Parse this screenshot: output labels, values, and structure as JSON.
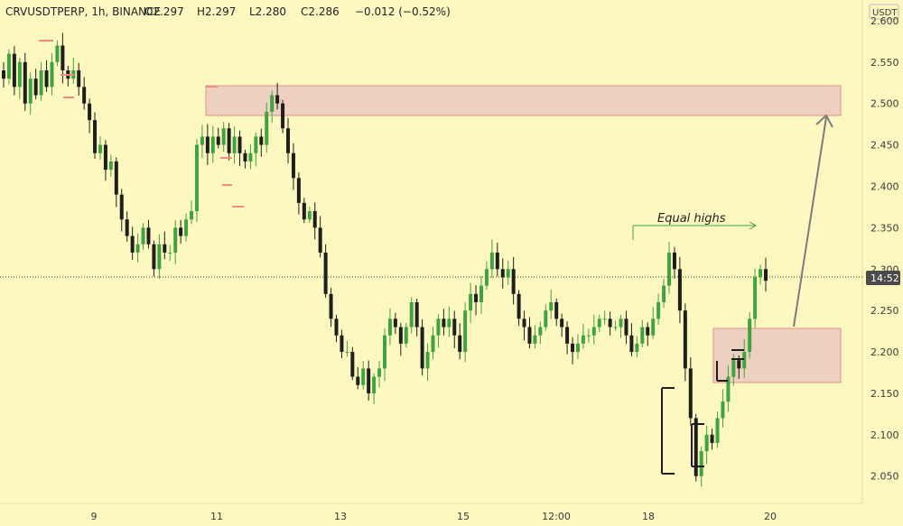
{
  "header": {
    "symbol_line": "CRVUSDTPERP, 1h, BINANCE",
    "open": "O2.297",
    "high": "H2.297",
    "low": "L2.280",
    "close": "C2.286",
    "change": "−0.012 (−0.52%)"
  },
  "currency_label": "USDT",
  "price_badge": "14:52",
  "annotation_equal_highs": "Equal highs",
  "colors": {
    "background": "#FDF8C0",
    "bull": "#3FA33F",
    "bear": "#1E1E1E",
    "zone_fill": "#EBC9C0",
    "zone_border": "#E08F88",
    "tick_marker": "#F28B82",
    "arrow": "#7B7B7B",
    "equal_highs": "#3FA33F",
    "badge": "#4A4A4A"
  },
  "chart_data": {
    "type": "candlestick",
    "symbol": "CRVUSDTPERP",
    "interval": "1h",
    "exchange": "BINANCE",
    "y_ticks": [
      2.6,
      2.55,
      2.5,
      2.45,
      2.4,
      2.35,
      2.3,
      2.25,
      2.2,
      2.15,
      2.1,
      2.05
    ],
    "ylim": [
      2.017,
      2.625
    ],
    "x_ticks": [
      "9",
      "11",
      "13",
      "15",
      "12:00",
      "18",
      "20"
    ],
    "current_price": 2.286,
    "bars_approx_close": [
      2.53,
      2.56,
      2.52,
      2.55,
      2.5,
      2.53,
      2.51,
      2.54,
      2.52,
      2.55,
      2.57,
      2.54,
      2.53,
      2.54,
      2.52,
      2.5,
      2.48,
      2.44,
      2.45,
      2.42,
      2.43,
      2.39,
      2.36,
      2.34,
      2.32,
      2.33,
      2.35,
      2.33,
      2.3,
      2.33,
      2.32,
      2.32,
      2.35,
      2.34,
      2.36,
      2.37,
      2.45,
      2.46,
      2.44,
      2.46,
      2.45,
      2.47,
      2.44,
      2.46,
      2.44,
      2.43,
      2.44,
      2.46,
      2.45,
      2.49,
      2.51,
      2.5,
      2.47,
      2.44,
      2.41,
      2.38,
      2.36,
      2.37,
      2.35,
      2.32,
      2.27,
      2.24,
      2.22,
      2.2,
      2.2,
      2.17,
      2.16,
      2.18,
      2.15,
      2.17,
      2.18,
      2.22,
      2.24,
      2.23,
      2.21,
      2.23,
      2.26,
      2.23,
      2.18,
      2.2,
      2.22,
      2.24,
      2.23,
      2.24,
      2.22,
      2.2,
      2.25,
      2.27,
      2.26,
      2.28,
      2.3,
      2.32,
      2.3,
      2.29,
      2.3,
      2.27,
      2.24,
      2.23,
      2.21,
      2.22,
      2.23,
      2.25,
      2.26,
      2.24,
      2.23,
      2.21,
      2.2,
      2.21,
      2.22,
      2.22,
      2.23,
      2.24,
      2.24,
      2.23,
      2.23,
      2.24,
      2.22,
      2.2,
      2.21,
      2.23,
      2.22,
      2.24,
      2.26,
      2.28,
      2.32,
      2.3,
      2.25,
      2.18,
      2.12,
      2.05,
      2.08,
      2.1,
      2.09,
      2.12,
      2.14,
      2.17,
      2.19,
      2.18,
      2.2,
      2.24,
      2.29,
      2.3,
      2.286
    ],
    "zones": [
      {
        "name": "supply-zone",
        "top": 2.526,
        "bottom": 2.488
      },
      {
        "name": "demand-zone",
        "top": 2.222,
        "bottom": 2.155
      }
    ],
    "equal_highs_level": 2.343,
    "annotations": [
      "Equal highs"
    ],
    "projection_arrow_target": 2.49
  }
}
